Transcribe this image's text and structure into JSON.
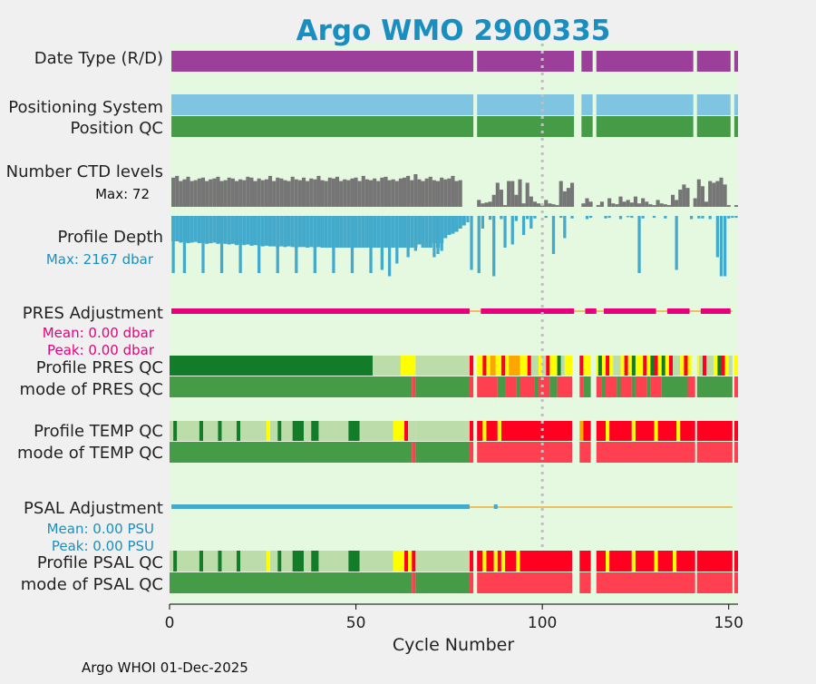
{
  "chart_data": {
    "type": "timeline",
    "title": "Argo WMO 2900335",
    "xlabel": "Cycle Number",
    "xlim": [
      0,
      152.5
    ],
    "xticks": [
      0,
      50,
      100,
      150
    ],
    "vline_cycle": 100,
    "footer": "Argo WHOI 01-Dec-2025",
    "colors": {
      "background": "#e5f8e0",
      "title": "#1a8fbf",
      "data_type": "#9b3f9a",
      "positioning": "#7fc4e0",
      "qc_good": "#469b46",
      "qc_dark": "#137c28",
      "qc_light": "#bcdcaa",
      "qc_yellow": "#ffff00",
      "qc_orange": "#ffa500",
      "qc_red": "#ff0020",
      "qc_red_mode": "#ff4050",
      "ctd": "#767676",
      "depth": "#44aacc",
      "pres_adj": "#e6007e",
      "line": "#f0c060",
      "psal_adj": "#44aacc",
      "text_pres": "#e6007e",
      "text_psal": "#1a8fbf"
    },
    "rows": {
      "data_type": "Date Type (R/D)",
      "positioning": "Positioning System",
      "position_qc": "Position QC",
      "ctd_levels": "Number CTD levels",
      "profile_depth": "Profile Depth",
      "pres_adjustment": "PRES Adjustment",
      "profile_pres_qc": "Profile PRES QC",
      "mode_pres_qc": "mode of PRES QC",
      "profile_temp_qc": "Profile TEMP QC",
      "mode_temp_qc": "mode of TEMP QC",
      "psal_adjustment": "PSAL Adjustment",
      "profile_psal_qc": "Profile PSAL QC",
      "mode_psal_qc": "mode of PSAL QC"
    },
    "annotations": {
      "ctd_max": "Max: 72",
      "depth_max": "Max: 2167 dbar",
      "pres_mean": "Mean: 0.00 dbar",
      "pres_peak": "Peak: 0.00 dbar",
      "psal_mean": "Mean: 0.00 PSU",
      "psal_peak": "Peak: 0.00 PSU"
    },
    "missing_cycles": [
      82,
      109,
      110,
      114,
      141,
      151
    ],
    "ctd_levels": [
      34,
      36,
      30,
      32,
      35,
      30,
      31,
      33,
      34,
      30,
      32,
      33,
      35,
      30,
      31,
      34,
      33,
      30,
      32,
      31,
      35,
      34,
      30,
      33,
      31,
      32,
      36,
      30,
      34,
      33,
      31,
      30,
      35,
      32,
      31,
      34,
      30,
      33,
      32,
      36,
      31,
      30,
      34,
      33,
      35,
      30,
      32,
      31,
      33,
      34,
      30,
      36,
      32,
      31,
      33,
      30,
      34,
      35,
      31,
      32,
      30,
      33,
      34,
      36,
      31,
      38,
      32,
      30,
      33,
      35,
      31,
      30,
      34,
      32,
      33,
      36,
      30,
      31,
      0,
      0,
      0,
      0,
      8,
      4,
      5,
      6,
      14,
      28,
      20,
      2,
      30,
      30,
      14,
      32,
      4,
      28,
      12,
      6,
      4,
      2,
      8,
      4,
      3,
      2,
      30,
      18,
      22,
      28,
      0,
      0,
      4,
      10,
      6,
      0,
      2,
      6,
      0,
      10,
      4,
      3,
      12,
      6,
      8,
      5,
      12,
      4,
      10,
      6,
      3,
      2,
      8,
      4,
      3,
      2,
      14,
      8,
      20,
      26,
      22,
      0,
      10,
      32,
      24,
      6,
      30,
      28,
      30,
      34,
      26,
      2,
      0,
      2
    ],
    "depth_main": [
      0.4,
      0.4,
      0.42,
      0.41,
      0.43,
      0.42,
      0.41,
      0.43,
      0.42,
      0.44,
      0.43,
      0.42,
      0.44,
      0.43,
      0.44,
      0.45,
      0.44,
      0.46,
      0.45,
      0.46,
      0.45,
      0.47,
      0.46,
      0.47,
      0.48,
      0.47,
      0.48,
      0.48,
      0.49,
      0.48,
      0.49,
      0.48,
      0.49,
      0.5,
      0.49,
      0.49,
      0.5,
      0.49,
      0.5,
      0.49,
      0.5,
      0.5,
      0.5,
      0.5,
      0.5,
      0.5,
      0.5,
      0.5,
      0.5,
      0.5,
      0.5,
      0.5,
      0.5,
      0.5,
      0.5,
      0.5,
      0.5,
      0.5,
      0.5,
      0.5,
      0.5,
      0.5,
      0.5,
      0.5,
      0.5,
      0.5,
      0.45,
      0.5,
      0.5,
      0.5,
      0.43,
      0.5,
      0.43,
      0.35,
      0.3,
      0.28,
      0.25,
      0.2,
      0.15,
      0.0,
      0.0,
      0.0
    ],
    "depth_spikes": [
      [
        1,
        0.9
      ],
      [
        4,
        0.9
      ],
      [
        9,
        0.9
      ],
      [
        14,
        0.9
      ],
      [
        19,
        0.9
      ],
      [
        24,
        0.9
      ],
      [
        29,
        0.9
      ],
      [
        34,
        0.9
      ],
      [
        39,
        0.9
      ],
      [
        44,
        0.9
      ],
      [
        49,
        0.9
      ],
      [
        54,
        0.9
      ],
      [
        57,
        0.85
      ],
      [
        59,
        0.95
      ],
      [
        61,
        0.75
      ],
      [
        64,
        0.65
      ],
      [
        66,
        0.55
      ],
      [
        71,
        0.65
      ],
      [
        72,
        0.6
      ],
      [
        73,
        0.55
      ],
      [
        81,
        0.85
      ],
      [
        83,
        0.9
      ],
      [
        84,
        0.2
      ],
      [
        87,
        0.95
      ],
      [
        90,
        0.5
      ],
      [
        92,
        0.45
      ],
      [
        95,
        0.3
      ],
      [
        97,
        0.2
      ],
      [
        103,
        0.6
      ],
      [
        106,
        0.35
      ],
      [
        126,
        0.9
      ],
      [
        136,
        0.85
      ],
      [
        147,
        0.65
      ],
      [
        148,
        0.95
      ],
      [
        149,
        0.95
      ]
    ],
    "depth_small": [
      [
        80,
        0.1
      ],
      [
        86,
        0.06
      ],
      [
        89,
        0.05
      ],
      [
        93,
        0.08
      ],
      [
        96,
        0.05
      ],
      [
        98,
        0.04
      ],
      [
        101,
        0.03
      ],
      [
        105,
        0.03
      ],
      [
        108,
        0.04
      ],
      [
        112,
        0.05
      ],
      [
        113,
        0.03
      ],
      [
        117,
        0.04
      ],
      [
        118,
        0.03
      ],
      [
        121,
        0.05
      ],
      [
        123,
        0.02
      ],
      [
        124,
        0.03
      ],
      [
        127,
        0.04
      ],
      [
        130,
        0.03
      ],
      [
        133,
        0.04
      ],
      [
        140,
        0.05
      ],
      [
        142,
        0.04
      ],
      [
        143,
        0.04
      ],
      [
        145,
        0.05
      ],
      [
        150,
        0.04
      ],
      [
        151,
        0.03
      ],
      [
        152,
        0.03
      ]
    ],
    "pres_adj_segments": [
      [
        0.5,
        80.5
      ],
      [
        83.5,
        108.5
      ],
      [
        111.5,
        114.5
      ],
      [
        116.5,
        130.5
      ],
      [
        133.5,
        139.5
      ],
      [
        142.5,
        150.5
      ]
    ],
    "psal_adj_segments": [
      [
        0.5,
        80.5
      ],
      [
        87,
        88
      ]
    ],
    "profile_pres_qc": [
      [
        0,
        54.5,
        "dark"
      ],
      [
        54.5,
        62,
        "light"
      ],
      [
        62,
        66,
        "yellow"
      ],
      [
        66,
        80.5,
        "light"
      ],
      [
        80.5,
        81.5,
        "red"
      ],
      [
        82.5,
        84,
        "yellow"
      ],
      [
        84,
        85,
        "red"
      ],
      [
        85,
        86,
        "yellow"
      ],
      [
        86,
        87.5,
        "orange"
      ],
      [
        87.5,
        89,
        "yellow"
      ],
      [
        89,
        90,
        "red"
      ],
      [
        90,
        91,
        "yellow"
      ],
      [
        91,
        94,
        "orange"
      ],
      [
        94,
        96,
        "yellow"
      ],
      [
        96,
        97,
        "red"
      ],
      [
        97,
        99,
        "light"
      ],
      [
        99,
        100,
        "yellow"
      ],
      [
        100,
        101,
        "light"
      ],
      [
        101,
        102,
        "red"
      ],
      [
        102,
        104,
        "yellow"
      ],
      [
        104,
        105,
        "dark"
      ],
      [
        105,
        106,
        "light"
      ],
      [
        106,
        108,
        "yellow"
      ],
      [
        110,
        111,
        "red"
      ],
      [
        111,
        113,
        "yellow"
      ],
      [
        114.5,
        115,
        "yellow"
      ],
      [
        115,
        116,
        "dark"
      ],
      [
        116,
        117,
        "yellow"
      ],
      [
        117,
        118,
        "red"
      ],
      [
        118,
        119,
        "yellow"
      ],
      [
        119,
        121,
        "light"
      ],
      [
        121,
        122,
        "yellow"
      ],
      [
        122,
        123,
        "red"
      ],
      [
        123,
        124,
        "yellow"
      ],
      [
        124,
        125,
        "dark"
      ],
      [
        125,
        127,
        "yellow"
      ],
      [
        127,
        128,
        "red"
      ],
      [
        128,
        129,
        "yellow"
      ],
      [
        129,
        130,
        "dark"
      ],
      [
        130,
        131,
        "red"
      ],
      [
        131,
        132,
        "yellow"
      ],
      [
        132,
        133,
        "dark"
      ],
      [
        133,
        134,
        "yellow"
      ],
      [
        134,
        135,
        "red"
      ],
      [
        135,
        137,
        "light"
      ],
      [
        137,
        138,
        "yellow"
      ],
      [
        138,
        139,
        "red"
      ],
      [
        139,
        140,
        "yellow"
      ],
      [
        141.5,
        142,
        "yellow"
      ],
      [
        142,
        143,
        "light"
      ],
      [
        143,
        144,
        "red"
      ],
      [
        144,
        146,
        "light"
      ],
      [
        146,
        147,
        "yellow"
      ],
      [
        147,
        148,
        "dark"
      ],
      [
        148,
        149,
        "red"
      ],
      [
        149,
        150,
        "yellow"
      ],
      [
        150,
        151,
        "light"
      ],
      [
        151.5,
        152.5,
        "yellow"
      ]
    ],
    "mode_pres_qc": [
      [
        0,
        65,
        "good"
      ],
      [
        65,
        66,
        "red_mode"
      ],
      [
        66,
        80.5,
        "good"
      ],
      [
        80.5,
        81.5,
        "red_mode"
      ],
      [
        82.5,
        88,
        "red_mode"
      ],
      [
        88,
        90,
        "good"
      ],
      [
        90,
        93,
        "red_mode"
      ],
      [
        93,
        94,
        "good"
      ],
      [
        94,
        98,
        "red_mode"
      ],
      [
        98,
        99,
        "good"
      ],
      [
        99,
        102,
        "red_mode"
      ],
      [
        102,
        104,
        "good"
      ],
      [
        104,
        108,
        "red_mode"
      ],
      [
        110,
        111,
        "red_mode"
      ],
      [
        111,
        113,
        "good"
      ],
      [
        114.5,
        116,
        "red_mode"
      ],
      [
        116,
        117,
        "good"
      ],
      [
        117,
        120,
        "red_mode"
      ],
      [
        120,
        121,
        "good"
      ],
      [
        121,
        124,
        "red_mode"
      ],
      [
        124,
        125,
        "good"
      ],
      [
        125,
        128,
        "red_mode"
      ],
      [
        128,
        129,
        "good"
      ],
      [
        129,
        132,
        "red_mode"
      ],
      [
        132,
        139,
        "good"
      ],
      [
        139,
        141,
        "red_mode"
      ],
      [
        141.5,
        151,
        "good"
      ],
      [
        151.5,
        152.5,
        "red_mode"
      ]
    ],
    "profile_temp_qc": [
      [
        0,
        1,
        "light"
      ],
      [
        1,
        2,
        "dark"
      ],
      [
        2,
        8,
        "light"
      ],
      [
        8,
        9,
        "dark"
      ],
      [
        9,
        13,
        "light"
      ],
      [
        13,
        14,
        "dark"
      ],
      [
        14,
        18,
        "light"
      ],
      [
        18,
        19,
        "dark"
      ],
      [
        19,
        26,
        "light"
      ],
      [
        26,
        27,
        "yellow"
      ],
      [
        27,
        29,
        "light"
      ],
      [
        29,
        30,
        "dark"
      ],
      [
        30,
        33,
        "light"
      ],
      [
        33,
        36,
        "dark"
      ],
      [
        36,
        38,
        "light"
      ],
      [
        38,
        40,
        "dark"
      ],
      [
        40,
        48,
        "light"
      ],
      [
        48,
        51,
        "dark"
      ],
      [
        51,
        60,
        "light"
      ],
      [
        60,
        63,
        "yellow"
      ],
      [
        63,
        64,
        "red"
      ],
      [
        64,
        66,
        "light"
      ],
      [
        66,
        80.5,
        "light"
      ],
      [
        80.5,
        81.5,
        "red"
      ],
      [
        82.5,
        84,
        "red"
      ],
      [
        84,
        85,
        "yellow"
      ],
      [
        85,
        88,
        "red"
      ],
      [
        88,
        89,
        "yellow"
      ],
      [
        89,
        108,
        "red"
      ],
      [
        110,
        111,
        "orange"
      ],
      [
        111,
        113,
        "red"
      ],
      [
        114.5,
        117,
        "red"
      ],
      [
        117,
        118,
        "yellow"
      ],
      [
        118,
        124,
        "red"
      ],
      [
        124,
        125,
        "yellow"
      ],
      [
        125,
        130,
        "red"
      ],
      [
        130,
        131,
        "yellow"
      ],
      [
        131,
        136,
        "red"
      ],
      [
        136,
        137,
        "yellow"
      ],
      [
        137,
        141,
        "red"
      ],
      [
        141.5,
        151,
        "red"
      ],
      [
        151.5,
        152.5,
        "red"
      ]
    ],
    "mode_temp_qc": [
      [
        0,
        65,
        "good"
      ],
      [
        65,
        66,
        "red_mode"
      ],
      [
        66,
        80.5,
        "good"
      ],
      [
        80.5,
        81.5,
        "red_mode"
      ],
      [
        82.5,
        108,
        "red_mode"
      ],
      [
        110,
        113,
        "red_mode"
      ],
      [
        114.5,
        141,
        "red_mode"
      ],
      [
        141.5,
        151,
        "red_mode"
      ],
      [
        151.5,
        152.5,
        "red_mode"
      ]
    ],
    "profile_psal_qc": [
      [
        0,
        1,
        "light"
      ],
      [
        1,
        2,
        "dark"
      ],
      [
        2,
        8,
        "light"
      ],
      [
        8,
        9,
        "dark"
      ],
      [
        9,
        13,
        "light"
      ],
      [
        13,
        14,
        "dark"
      ],
      [
        14,
        18,
        "light"
      ],
      [
        18,
        19,
        "dark"
      ],
      [
        19,
        26,
        "light"
      ],
      [
        26,
        27,
        "yellow"
      ],
      [
        27,
        29,
        "light"
      ],
      [
        29,
        30,
        "dark"
      ],
      [
        30,
        33,
        "light"
      ],
      [
        33,
        36,
        "dark"
      ],
      [
        36,
        38,
        "light"
      ],
      [
        38,
        40,
        "dark"
      ],
      [
        40,
        48,
        "light"
      ],
      [
        48,
        51,
        "dark"
      ],
      [
        51,
        60,
        "light"
      ],
      [
        60,
        63,
        "yellow"
      ],
      [
        63,
        64,
        "red"
      ],
      [
        64,
        65,
        "yellow"
      ],
      [
        65,
        66,
        "red"
      ],
      [
        66,
        80.5,
        "light"
      ],
      [
        80.5,
        81.5,
        "red"
      ],
      [
        82.5,
        84,
        "red"
      ],
      [
        84,
        85,
        "yellow"
      ],
      [
        85,
        87,
        "red"
      ],
      [
        87,
        88,
        "yellow"
      ],
      [
        88,
        89,
        "red"
      ],
      [
        89,
        90,
        "yellow"
      ],
      [
        90,
        93,
        "red"
      ],
      [
        93,
        94,
        "yellow"
      ],
      [
        94,
        108,
        "red"
      ],
      [
        110,
        113,
        "red"
      ],
      [
        114.5,
        117,
        "red"
      ],
      [
        117,
        118,
        "yellow"
      ],
      [
        118,
        124,
        "red"
      ],
      [
        124,
        125,
        "yellow"
      ],
      [
        125,
        130,
        "red"
      ],
      [
        130,
        131,
        "yellow"
      ],
      [
        131,
        135,
        "red"
      ],
      [
        135,
        136,
        "yellow"
      ],
      [
        136,
        141,
        "red"
      ],
      [
        141.5,
        151,
        "red"
      ],
      [
        151.5,
        152.5,
        "red"
      ]
    ],
    "mode_psal_qc": [
      [
        0,
        65,
        "good"
      ],
      [
        65,
        66,
        "red_mode"
      ],
      [
        66,
        80.5,
        "good"
      ],
      [
        80.5,
        81.5,
        "red_mode"
      ],
      [
        82.5,
        108,
        "red_mode"
      ],
      [
        110,
        113,
        "red_mode"
      ],
      [
        114.5,
        141,
        "red_mode"
      ],
      [
        141.5,
        151,
        "red_mode"
      ],
      [
        151.5,
        152.5,
        "red_mode"
      ]
    ]
  }
}
